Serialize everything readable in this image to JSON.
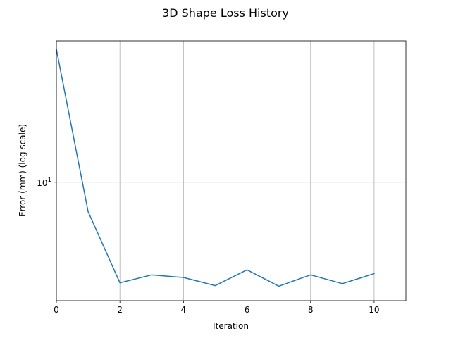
{
  "chart_data": {
    "type": "line",
    "title": "3D Shape Loss History",
    "xlabel": "Iteration",
    "ylabel": "Error (mm) (log scale)",
    "yscale": "log",
    "xlim": [
      0,
      11
    ],
    "ylim": [
      3.5,
      35
    ],
    "grid": true,
    "x_ticks": [
      0,
      2,
      4,
      6,
      8,
      10
    ],
    "x_tick_labels": [
      "0",
      "2",
      "4",
      "6",
      "8",
      "10"
    ],
    "y_ticks": [
      10
    ],
    "y_tick_labels": [
      "10",
      "1"
    ],
    "series": [
      {
        "color": "#1f77b4",
        "x": [
          0,
          1,
          2,
          3,
          4,
          5,
          6,
          7,
          8,
          9,
          10
        ],
        "y": [
          32.5,
          7.7,
          4.1,
          4.4,
          4.3,
          4.0,
          4.6,
          3.98,
          4.4,
          4.07,
          4.45
        ]
      }
    ]
  }
}
